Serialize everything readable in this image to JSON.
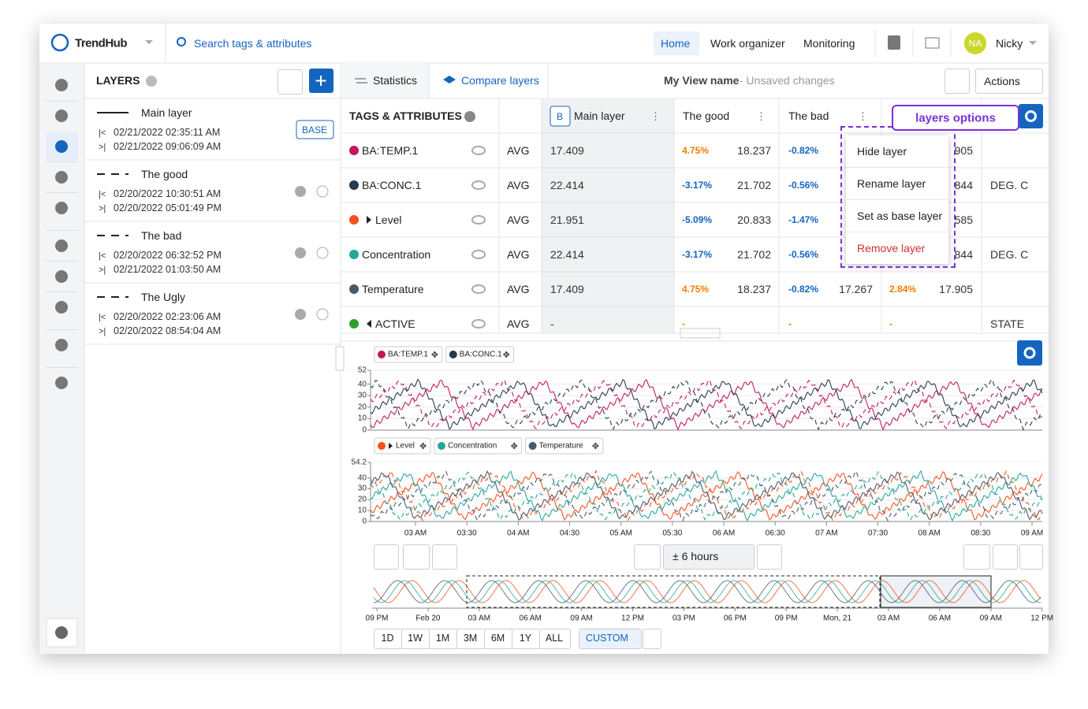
{
  "header": {
    "logo": "TrendHub",
    "search": "Search tags & attributes",
    "nav": [
      "Home",
      "Work organizer",
      "Monitoring"
    ],
    "user_initials": "NA",
    "user_name": "Nicky"
  },
  "layers_panel": {
    "title": "LAYERS",
    "base_badge": "BASE",
    "layers": [
      {
        "name": "Main layer",
        "start": "02/21/2022 02:35:11 AM",
        "end": "02/21/2022 09:06:09 AM"
      },
      {
        "name": "The good",
        "start": "02/20/2022 10:30:51 AM",
        "end": "02/20/2022 05:01:49 PM"
      },
      {
        "name": "The bad",
        "start": "02/20/2022 06:32:52 PM",
        "end": "02/21/2022 01:03:50 AM"
      },
      {
        "name": "The Ugly",
        "start": "02/20/2022 02:23:06 AM",
        "end": "02/20/2022 08:54:04 AM"
      }
    ]
  },
  "toolbar": {
    "tabs": [
      "Statistics",
      "Compare layers"
    ],
    "view_name": "My View name",
    "view_status": "- Unsaved changes",
    "actions": "Actions"
  },
  "table": {
    "title": "TAGS & ATTRIBUTES",
    "base_marker": "B",
    "columns": [
      "Main layer",
      "The good",
      "The bad"
    ],
    "rows": [
      {
        "tag": "BA:TEMP.1",
        "color": "#c2185b",
        "agg": "AVG",
        "main": "17.409",
        "good_pct": "4.75%",
        "good": "18.237",
        "bad_pct": "-0.82%",
        "bad": null,
        "ugly_pct": null,
        "ugly": "905",
        "unit": null
      },
      {
        "tag": "BA:CONC.1",
        "color": "#263a52",
        "agg": "AVG",
        "main": "22.414",
        "good_pct": "-3.17%",
        "good": "21.702",
        "bad_pct": "-0.56%",
        "bad": null,
        "ugly_pct": null,
        "ugly": "844",
        "unit": "DEG. C"
      },
      {
        "tag": "Level",
        "color": "#f4511e",
        "agg": "AVG",
        "main": "21.951",
        "good_pct": "-5.09%",
        "good": "20.833",
        "bad_pct": "-1.47%",
        "bad": null,
        "ugly_pct": null,
        "ugly": "585",
        "unit": null
      },
      {
        "tag": "Concentration",
        "color": "#26a69a",
        "agg": "AVG",
        "main": "22.414",
        "good_pct": "-3.17%",
        "good": "21.702",
        "bad_pct": "-0.56%",
        "bad": null,
        "ugly_pct": null,
        "ugly": "844",
        "unit": "DEG. C"
      },
      {
        "tag": "Temperature",
        "color": "#4a5866",
        "agg": "AVG",
        "main": "17.409",
        "good_pct": "4.75%",
        "good": "18.237",
        "bad_pct": "-0.82%",
        "bad": "17.267",
        "ugly_pct": "2.84%",
        "ugly": "17.905",
        "unit": null
      },
      {
        "tag": "ACTIVE",
        "color": "#2e9d2e",
        "agg": "AVG",
        "main": "-",
        "good_pct": "-",
        "good": null,
        "bad_pct": "-",
        "bad": null,
        "ugly_pct": "-",
        "ugly": null,
        "unit": "STATE"
      }
    ]
  },
  "menu": {
    "items": [
      "Hide layer",
      "Rename layer",
      "Set as base layer",
      "Remove layer"
    ],
    "callout": "layers options"
  },
  "chart": {
    "panes": [
      {
        "legend": [
          {
            "name": "BA:TEMP.1",
            "color": "#c2185b"
          },
          {
            "name": "BA:CONC.1",
            "color": "#263a52"
          }
        ],
        "ylim": [
          0,
          52
        ],
        "yticks": [
          0,
          10,
          20,
          30,
          40,
          52
        ]
      },
      {
        "legend": [
          {
            "name": "Level",
            "color": "#f4511e"
          },
          {
            "name": "Concentration",
            "color": "#26a69a"
          },
          {
            "name": "Temperature",
            "color": "#4a5866"
          }
        ],
        "ylim": [
          0,
          54.2
        ],
        "yticks": [
          0,
          10,
          20,
          30,
          40,
          54.2
        ]
      }
    ],
    "xticks": [
      "03 AM",
      "03:30",
      "04 AM",
      "04:30",
      "05 AM",
      "05:30",
      "06 AM",
      "06:30",
      "07 AM",
      "07:30",
      "08 AM",
      "08:30",
      "09 AM"
    ],
    "window": "± 6 hours",
    "navigator_ticks": [
      "09 PM",
      "Feb 20",
      "03 AM",
      "06 AM",
      "09 AM",
      "12 PM",
      "03 PM",
      "06 PM",
      "09 PM",
      "Mon, 21",
      "03 AM",
      "06 AM",
      "09 AM",
      "12 PM"
    ],
    "ranges": [
      "1D",
      "1W",
      "1M",
      "3M",
      "6M",
      "1Y",
      "ALL",
      "CUSTOM"
    ]
  }
}
